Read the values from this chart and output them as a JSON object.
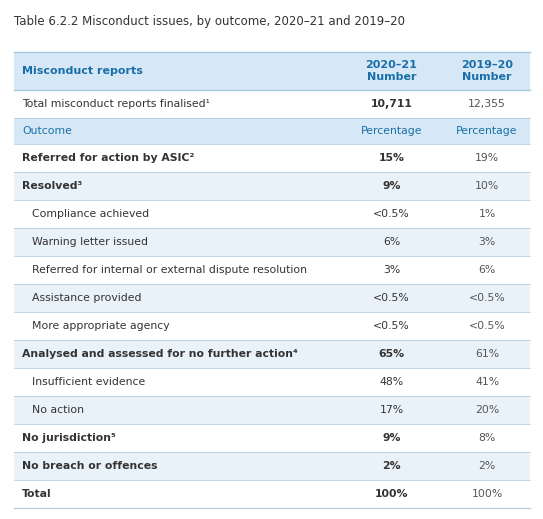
{
  "title": "Table 6.2.2 Misconduct issues, by outcome, 2020–21 and 2019–20",
  "header_row": {
    "col1": "Misconduct reports",
    "col2": "2020–21\nNumber",
    "col3": "2019–20\nNumber"
  },
  "header_color": "#d6e8f5",
  "header_text_color": "#1a6fa8",
  "subheader_color": "#d6e8f5",
  "alt_row_color": "#eaf2f9",
  "white_row_color": "#ffffff",
  "border_color": "#a8c8e0",
  "rows": [
    {
      "col1": "Total misconduct reports finalised¹",
      "col2": "10,711",
      "col3": "12,355",
      "bold": false,
      "indent": false,
      "bg": "white",
      "col2_bold": true
    },
    {
      "col1": "Outcome",
      "col2": "Percentage",
      "col3": "Percentage",
      "bold": false,
      "indent": false,
      "bg": "subheader",
      "col1_color": "#1a6fa8",
      "col2_color": "#1a6fa8",
      "col3_color": "#1a6fa8"
    },
    {
      "col1": "Referred for action by ASIC²",
      "col2": "15%",
      "col3": "19%",
      "bold": true,
      "indent": false,
      "bg": "white",
      "col2_bold": true
    },
    {
      "col1": "Resolved³",
      "col2": "9%",
      "col3": "10%",
      "bold": true,
      "indent": false,
      "bg": "alt",
      "col2_bold": true
    },
    {
      "col1": "Compliance achieved",
      "col2": "<0.5%",
      "col3": "1%",
      "bold": false,
      "indent": true,
      "bg": "white"
    },
    {
      "col1": "Warning letter issued",
      "col2": "6%",
      "col3": "3%",
      "bold": false,
      "indent": true,
      "bg": "alt"
    },
    {
      "col1": "Referred for internal or external dispute resolution",
      "col2": "3%",
      "col3": "6%",
      "bold": false,
      "indent": true,
      "bg": "white"
    },
    {
      "col1": "Assistance provided",
      "col2": "<0.5%",
      "col3": "<0.5%",
      "bold": false,
      "indent": true,
      "bg": "alt"
    },
    {
      "col1": "More appropriate agency",
      "col2": "<0.5%",
      "col3": "<0.5%",
      "bold": false,
      "indent": true,
      "bg": "white"
    },
    {
      "col1": "Analysed and assessed for no further action⁴",
      "col2": "65%",
      "col3": "61%",
      "bold": true,
      "indent": false,
      "bg": "alt",
      "col2_bold": true
    },
    {
      "col1": "Insufficient evidence",
      "col2": "48%",
      "col3": "41%",
      "bold": false,
      "indent": true,
      "bg": "white"
    },
    {
      "col1": "No action",
      "col2": "17%",
      "col3": "20%",
      "bold": false,
      "indent": true,
      "bg": "alt"
    },
    {
      "col1": "No jurisdiction⁵",
      "col2": "9%",
      "col3": "8%",
      "bold": true,
      "indent": false,
      "bg": "white",
      "col2_bold": true
    },
    {
      "col1": "No breach or offences",
      "col2": "2%",
      "col3": "2%",
      "bold": true,
      "indent": false,
      "bg": "alt",
      "col2_bold": true
    },
    {
      "col1": "Total",
      "col2": "100%",
      "col3": "100%",
      "bold": true,
      "indent": false,
      "bg": "white",
      "col2_bold": true
    }
  ],
  "title_fontsize": 8.5,
  "body_fontsize": 7.8,
  "header_fontsize": 8.0,
  "figure_bg": "#ffffff",
  "title_color": "#333333"
}
